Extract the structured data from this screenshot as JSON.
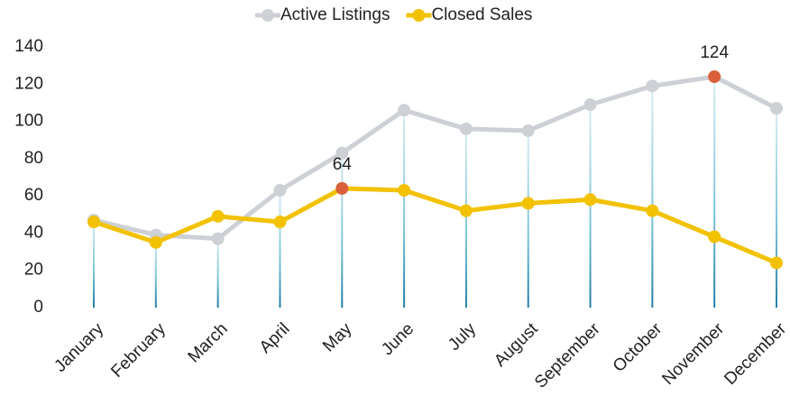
{
  "chart_data": {
    "type": "line",
    "categories": [
      "January",
      "February",
      "March",
      "April",
      "May",
      "June",
      "July",
      "August",
      "September",
      "October",
      "November",
      "December"
    ],
    "series": [
      {
        "name": "Active Listings",
        "color": "#cdd0d4",
        "values": [
          47,
          39,
          37,
          63,
          83,
          106,
          96,
          95,
          109,
          119,
          124,
          107
        ]
      },
      {
        "name": "Closed Sales",
        "color": "#f2c200",
        "values": [
          46,
          35,
          49,
          46,
          64,
          63,
          52,
          56,
          58,
          52,
          38,
          24
        ]
      }
    ],
    "highlighted": [
      {
        "series": 1,
        "index": 4
      },
      {
        "series": 0,
        "index": 10
      }
    ],
    "highlight_color": "#d9603b",
    "ylim": [
      0,
      140
    ],
    "yticks": [
      0,
      20,
      40,
      60,
      80,
      100,
      120,
      140
    ],
    "legend": "top",
    "drop_lines": true
  }
}
